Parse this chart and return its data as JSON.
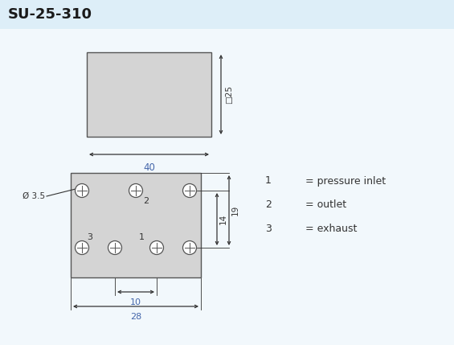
{
  "title": "SU-25-310",
  "title_bg_color": "#ddeef8",
  "bg_color": "#f2f8fc",
  "rect_fill": "#d4d4d4",
  "rect_stroke": "#555555",
  "dim_color": "#333333",
  "legend_items": [
    [
      "1",
      "= pressure inlet"
    ],
    [
      "2",
      "= outlet"
    ],
    [
      "3",
      "= exhaust"
    ]
  ],
  "dim_25_label": "□25",
  "dim_40_label": "40",
  "dim_35_label": "Ø 3.5",
  "dim_10_label": "10",
  "dim_28_label": "28",
  "dim_14_label": "14",
  "dim_19_label": "19"
}
